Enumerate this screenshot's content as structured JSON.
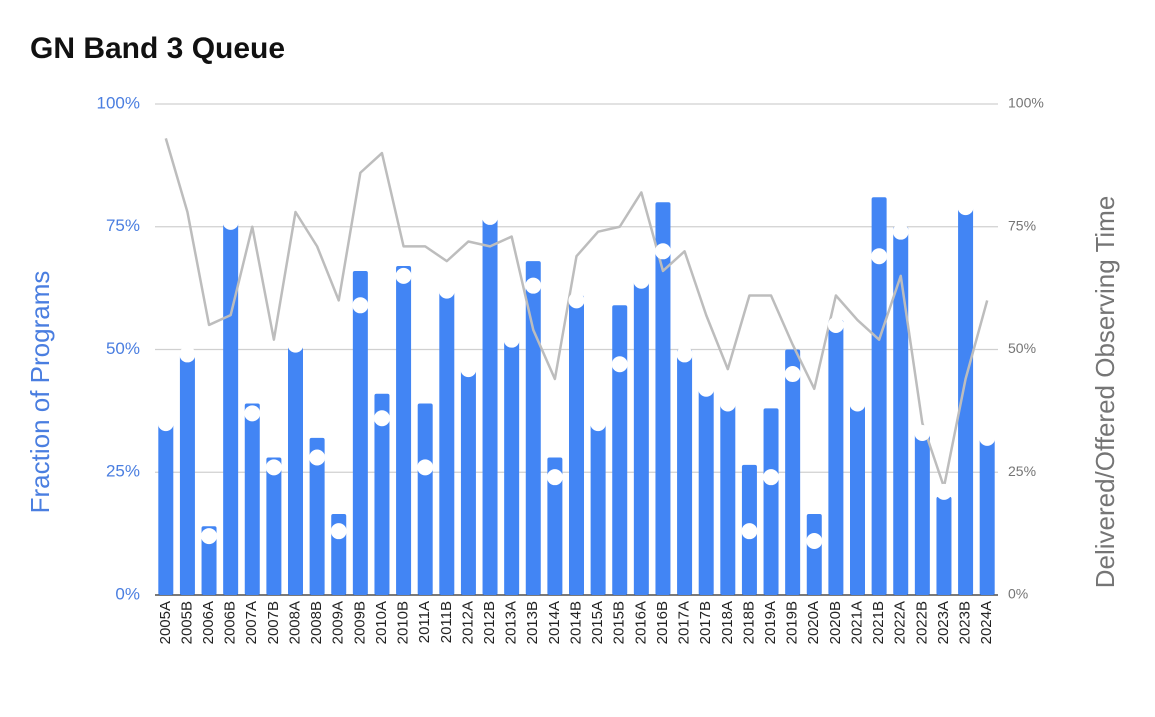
{
  "chart_data": {
    "type": "bar",
    "title": "GN Band 3 Queue",
    "y_label": "Fraction of Programs",
    "y2_label": "Delivered/Offered Observing Time",
    "categories": [
      "2005A",
      "2005B",
      "2006A",
      "2006B",
      "2007A",
      "2007B",
      "2008A",
      "2008B",
      "2009A",
      "2009B",
      "2010A",
      "2010B",
      "2011A",
      "2011B",
      "2012A",
      "2012B",
      "2013A",
      "2013B",
      "2014A",
      "2014B",
      "2015A",
      "2015B",
      "2016A",
      "2016B",
      "2017A",
      "2017B",
      "2018A",
      "2018B",
      "2019A",
      "2019B",
      "2020A",
      "2020B",
      "2021A",
      "2021B",
      "2022A",
      "2022B",
      "2023A",
      "2023B",
      "2024A"
    ],
    "series": [
      {
        "type": "bar",
        "color": "#4285f4",
        "values": [
          35,
          49.5,
          14,
          76,
          39,
          28,
          51,
          32,
          16.5,
          66,
          41,
          67,
          39,
          62,
          46,
          77,
          52,
          68,
          28,
          61,
          35,
          59,
          64,
          80,
          50,
          42,
          39,
          26.5,
          38,
          50,
          16.5,
          56,
          39,
          81,
          75,
          33,
          20,
          79,
          32.5
        ]
      },
      {
        "type": "scatter",
        "color": "#ffffff",
        "values": [
          35,
          49,
          12,
          76,
          37,
          26,
          51,
          28,
          13,
          59,
          36,
          65,
          26,
          62,
          46,
          77,
          52,
          63,
          24,
          60,
          35,
          47,
          64,
          70,
          49,
          42,
          39,
          13,
          24,
          45,
          11,
          55,
          39,
          69,
          74,
          33,
          21,
          79,
          32
        ]
      },
      {
        "type": "line",
        "color": "#bdbdbd",
        "axis": "y2",
        "values": [
          93,
          78,
          55,
          57,
          75,
          52,
          78,
          71,
          60,
          86,
          90,
          71,
          71,
          68,
          72,
          71,
          73,
          54,
          44,
          69,
          74,
          75,
          82,
          66,
          70,
          57,
          46,
          61,
          61,
          51,
          42,
          61,
          56,
          52,
          65,
          35,
          22,
          44,
          60
        ]
      }
    ],
    "ylim": [
      0,
      100
    ],
    "yticks": [
      {
        "value": 0,
        "label": "0%"
      },
      {
        "value": 25,
        "label": "25%"
      },
      {
        "value": 50,
        "label": "50%"
      },
      {
        "value": 75,
        "label": "75%"
      },
      {
        "value": 100,
        "label": "100%"
      }
    ],
    "y2lim": [
      0,
      100
    ],
    "y2ticks": [
      {
        "value": 0,
        "label": "0%"
      },
      {
        "value": 25,
        "label": "25%"
      },
      {
        "value": 50,
        "label": "50%"
      },
      {
        "value": 75,
        "label": "75%"
      },
      {
        "value": 100,
        "label": "100%"
      }
    ],
    "grid": true
  }
}
